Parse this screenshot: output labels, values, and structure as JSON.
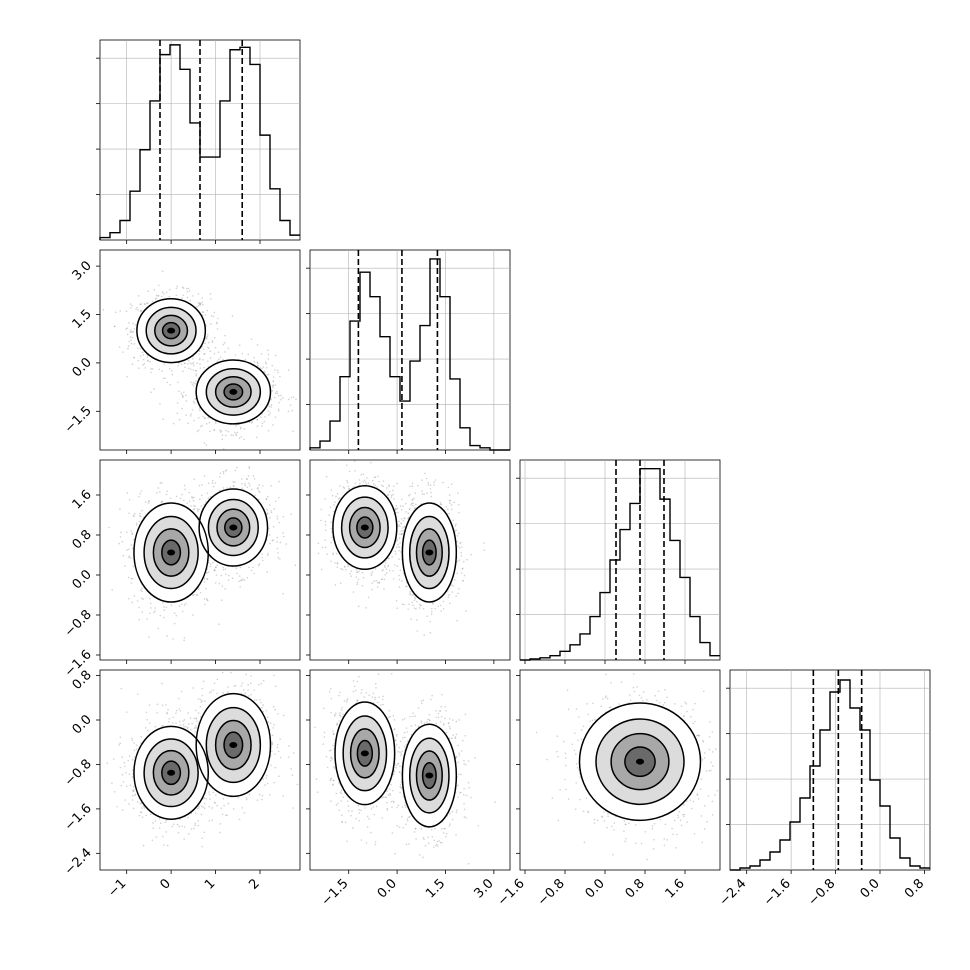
{
  "chart_data": {
    "type": "corner",
    "parameters": 4,
    "title": "",
    "axis_labels": [],
    "grid": true,
    "colors": {
      "lines": "#000000",
      "grid": "#b0b0b0",
      "density": "#000000"
    },
    "quantile_lines": "dashed",
    "diagonal_histograms": [
      {
        "param": 0,
        "xlim": [
          -1.6,
          2.9
        ],
        "quantiles": [
          -0.25,
          0.65,
          1.6
        ],
        "bin_edges": [
          -1.6,
          -1.375,
          -1.15,
          -0.925,
          -0.7,
          -0.475,
          -0.25,
          -0.025,
          0.2,
          0.425,
          0.65,
          0.875,
          1.1,
          1.325,
          1.55,
          1.775,
          2.0,
          2.225,
          2.45,
          2.675,
          2.9
        ],
        "counts": [
          0.01,
          0.03,
          0.08,
          0.2,
          0.37,
          0.57,
          0.76,
          0.8,
          0.7,
          0.48,
          0.34,
          0.34,
          0.57,
          0.78,
          0.79,
          0.72,
          0.43,
          0.21,
          0.08,
          0.02
        ],
        "ylim": [
          0,
          0.82
        ]
      },
      {
        "param": 1,
        "xlim": [
          -2.7,
          3.5
        ],
        "quantiles": [
          -1.2,
          0.15,
          1.25
        ],
        "bin_edges": [
          -2.7,
          -2.39,
          -2.08,
          -1.77,
          -1.46,
          -1.15,
          -0.84,
          -0.53,
          -0.22,
          0.09,
          0.4,
          0.71,
          1.02,
          1.33,
          1.64,
          1.95,
          2.26,
          2.57,
          2.88,
          3.19,
          3.5
        ],
        "counts": [
          0.01,
          0.04,
          0.13,
          0.33,
          0.58,
          0.8,
          0.69,
          0.51,
          0.33,
          0.22,
          0.4,
          0.56,
          0.86,
          0.69,
          0.32,
          0.1,
          0.02,
          0.01,
          0.0,
          0.0
        ],
        "ylim": [
          0,
          0.9
        ]
      },
      {
        "param": 2,
        "xlim": [
          -1.7,
          2.3
        ],
        "quantiles": [
          0.22,
          0.7,
          1.18
        ],
        "bin_edges": [
          -1.7,
          -1.5,
          -1.3,
          -1.1,
          -0.9,
          -0.7,
          -0.5,
          -0.3,
          -0.1,
          0.1,
          0.3,
          0.5,
          0.7,
          0.9,
          1.1,
          1.3,
          1.5,
          1.7,
          1.9,
          2.1,
          2.3
        ],
        "counts": [
          0.0,
          0.005,
          0.01,
          0.02,
          0.04,
          0.07,
          0.12,
          0.2,
          0.31,
          0.46,
          0.6,
          0.72,
          0.88,
          0.88,
          0.74,
          0.55,
          0.38,
          0.2,
          0.08,
          0.02
        ],
        "ylim": [
          0,
          0.92
        ]
      },
      {
        "param": 3,
        "xlim": [
          -2.7,
          0.9
        ],
        "quantiles": [
          -1.2,
          -0.75,
          -0.33
        ],
        "bin_edges": [
          -2.7,
          -2.52,
          -2.34,
          -2.16,
          -1.98,
          -1.8,
          -1.62,
          -1.44,
          -1.26,
          -1.08,
          -0.9,
          -0.72,
          -0.54,
          -0.36,
          -0.18,
          0.0,
          0.18,
          0.36,
          0.54,
          0.72,
          0.9
        ],
        "counts": [
          0.0,
          0.01,
          0.02,
          0.05,
          0.09,
          0.15,
          0.24,
          0.36,
          0.52,
          0.7,
          0.89,
          0.95,
          0.81,
          0.7,
          0.45,
          0.32,
          0.16,
          0.06,
          0.02,
          0.01
        ],
        "ylim": [
          0,
          1.0
        ]
      }
    ],
    "density_panels": [
      {
        "x": 0,
        "y": 1,
        "clusters": [
          {
            "cx": 0.0,
            "cy": 1.0,
            "sx": 0.35,
            "sy": 0.45,
            "r": 0.0
          },
          {
            "cx": 1.4,
            "cy": -0.9,
            "sx": 0.38,
            "sy": 0.45,
            "r": 0.0
          }
        ]
      },
      {
        "x": 0,
        "y": 2,
        "clusters": [
          {
            "cx": 0.0,
            "cy": 0.45,
            "sx": 0.38,
            "sy": 0.45,
            "r": 0.0
          },
          {
            "cx": 1.4,
            "cy": 0.95,
            "sx": 0.35,
            "sy": 0.35,
            "r": 0.0
          }
        ]
      },
      {
        "x": 1,
        "y": 2,
        "clusters": [
          {
            "cx": -1.0,
            "cy": 0.95,
            "sx": 0.45,
            "sy": 0.38,
            "r": 0.0
          },
          {
            "cx": 1.0,
            "cy": 0.45,
            "sx": 0.38,
            "sy": 0.45,
            "r": 0.0
          }
        ]
      },
      {
        "x": 0,
        "y": 3,
        "clusters": [
          {
            "cx": 0.0,
            "cy": -0.95,
            "sx": 0.38,
            "sy": 0.38,
            "r": 0.0
          },
          {
            "cx": 1.4,
            "cy": -0.45,
            "sx": 0.38,
            "sy": 0.42,
            "r": 0.0
          }
        ]
      },
      {
        "x": 1,
        "y": 3,
        "clusters": [
          {
            "cx": -1.0,
            "cy": -0.6,
            "sx": 0.42,
            "sy": 0.42,
            "r": 0.0
          },
          {
            "cx": 1.0,
            "cy": -1.0,
            "sx": 0.38,
            "sy": 0.42,
            "r": 0.0
          }
        ]
      },
      {
        "x": 2,
        "y": 3,
        "clusters": [
          {
            "cx": 0.7,
            "cy": -0.75,
            "sx": 0.55,
            "sy": 0.48,
            "r": 0.0
          }
        ]
      }
    ],
    "axes": {
      "x_ticks": [
        [
          "-1",
          "0",
          "1",
          "2"
        ],
        [
          "-1.5",
          "0.0",
          "1.5",
          "3.0"
        ],
        [
          "-1.6",
          "-0.8",
          "0.0",
          "0.8",
          "1.6"
        ],
        [
          "-2.4",
          "-1.6",
          "-0.8",
          "0.0",
          "0.8"
        ]
      ],
      "y_ticks": {
        "row1": [
          "-1.5",
          "0.0",
          "1.5",
          "3.0"
        ],
        "row2": [
          "-1.6",
          "-0.8",
          "0.0",
          "0.8",
          "1.6"
        ],
        "row3": [
          "-2.4",
          "-1.6",
          "-0.8",
          "0.0",
          "0.8"
        ]
      }
    }
  }
}
